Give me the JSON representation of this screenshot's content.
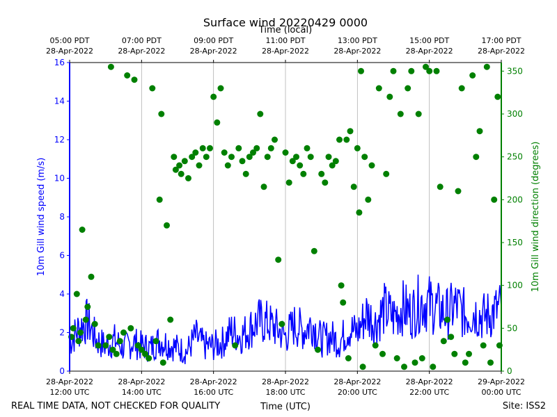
{
  "chart_data": {
    "type": "line+scatter",
    "title": "Surface wind 20220429 0000",
    "top_axis_label": "Time (local)",
    "xlabel": "Time (UTC)",
    "ylabel_left": "10m Gill wind speed (m/s)",
    "ylabel_right": "10m Gill wind direction (degrees)",
    "footer_left": "REAL TIME DATA, NOT CHECKED FOR QUALITY",
    "footer_right": "Site: ISS2",
    "x_range_hours_utc": [
      12,
      24
    ],
    "ylim_left": [
      0,
      16
    ],
    "ylim_right": [
      0,
      360
    ],
    "grid": "vertical",
    "colors": {
      "speed": "#0000ff",
      "direction": "#008000",
      "grid": "#b0b0b0",
      "axis": "#000000"
    },
    "x_ticks_utc": [
      {
        "hour": 12,
        "date": "28-Apr-2022",
        "time": "12:00 UTC"
      },
      {
        "hour": 14,
        "date": "28-Apr-2022",
        "time": "14:00 UTC"
      },
      {
        "hour": 16,
        "date": "28-Apr-2022",
        "time": "16:00 UTC"
      },
      {
        "hour": 18,
        "date": "28-Apr-2022",
        "time": "18:00 UTC"
      },
      {
        "hour": 20,
        "date": "28-Apr-2022",
        "time": "20:00 UTC"
      },
      {
        "hour": 22,
        "date": "28-Apr-2022",
        "time": "22:00 UTC"
      },
      {
        "hour": 24,
        "date": "29-Apr-2022",
        "time": "00:00 UTC"
      }
    ],
    "x_ticks_local": [
      {
        "hour": 12,
        "time": "05:00 PDT",
        "date": "28-Apr-2022"
      },
      {
        "hour": 14,
        "time": "07:00 PDT",
        "date": "28-Apr-2022"
      },
      {
        "hour": 16,
        "time": "09:00 PDT",
        "date": "28-Apr-2022"
      },
      {
        "hour": 18,
        "time": "11:00 PDT",
        "date": "28-Apr-2022"
      },
      {
        "hour": 20,
        "time": "13:00 PDT",
        "date": "28-Apr-2022"
      },
      {
        "hour": 22,
        "time": "15:00 PDT",
        "date": "28-Apr-2022"
      },
      {
        "hour": 24,
        "time": "17:00 PDT",
        "date": "28-Apr-2022"
      }
    ],
    "y_ticks_left": [
      0,
      2,
      4,
      6,
      8,
      10,
      12,
      14,
      16
    ],
    "y_ticks_right": [
      0,
      50,
      100,
      150,
      200,
      250,
      300,
      350
    ],
    "series": [
      {
        "name": "wind_speed",
        "axis": "left",
        "style": "line",
        "x_hours_utc": [
          12.0,
          12.25,
          12.5,
          12.75,
          13.0,
          13.25,
          13.5,
          13.75,
          14.0,
          14.25,
          14.5,
          14.75,
          15.0,
          15.25,
          15.5,
          15.75,
          16.0,
          16.25,
          16.5,
          16.75,
          17.0,
          17.25,
          17.5,
          17.75,
          18.0,
          18.25,
          18.5,
          18.75,
          19.0,
          19.25,
          19.5,
          19.75,
          20.0,
          20.25,
          20.5,
          20.75,
          21.0,
          21.25,
          21.5,
          21.75,
          22.0,
          22.25,
          22.5,
          22.75,
          23.0,
          23.25,
          23.5,
          23.75,
          24.0
        ],
        "values": [
          1.5,
          2.2,
          2.6,
          1.6,
          1.3,
          1.6,
          1.2,
          1.5,
          1.3,
          1.2,
          1.6,
          1.4,
          1.2,
          1.0,
          1.8,
          1.3,
          1.3,
          1.5,
          2.1,
          1.8,
          2.2,
          2.6,
          2.5,
          2.2,
          1.8,
          2.4,
          2.1,
          2.5,
          1.6,
          1.8,
          1.5,
          2.2,
          2.0,
          3.0,
          2.5,
          3.2,
          2.8,
          3.3,
          3.0,
          3.6,
          3.5,
          3.2,
          3.0,
          3.4,
          2.9,
          3.1,
          2.8,
          3.0,
          3.3
        ]
      },
      {
        "name": "wind_direction",
        "axis": "right",
        "style": "scatter",
        "x_hours_utc": [
          12.05,
          12.1,
          12.2,
          12.25,
          12.3,
          12.35,
          12.45,
          12.5,
          12.6,
          12.7,
          12.8,
          13.0,
          13.1,
          13.15,
          13.2,
          13.3,
          13.4,
          13.5,
          13.6,
          13.7,
          13.8,
          13.9,
          14.0,
          14.1,
          14.2,
          14.3,
          14.4,
          14.5,
          14.55,
          14.6,
          14.7,
          14.8,
          14.9,
          14.95,
          15.05,
          15.1,
          15.2,
          15.3,
          15.4,
          15.5,
          15.6,
          15.7,
          15.8,
          15.9,
          16.0,
          16.1,
          16.2,
          16.3,
          16.4,
          16.5,
          16.6,
          16.7,
          16.8,
          16.9,
          17.0,
          17.1,
          17.2,
          17.3,
          17.4,
          17.5,
          17.6,
          17.7,
          17.8,
          17.9,
          18.0,
          18.1,
          18.2,
          18.3,
          18.4,
          18.5,
          18.6,
          18.7,
          18.8,
          18.9,
          19.0,
          19.1,
          19.2,
          19.3,
          19.4,
          19.5,
          19.55,
          19.6,
          19.7,
          19.75,
          19.8,
          19.9,
          20.0,
          20.05,
          20.1,
          20.15,
          20.2,
          20.3,
          20.4,
          20.5,
          20.6,
          20.7,
          20.8,
          20.9,
          21.0,
          21.1,
          21.2,
          21.3,
          21.4,
          21.5,
          21.6,
          21.7,
          21.8,
          21.9,
          22.0,
          22.1,
          22.2,
          22.3,
          22.4,
          22.5,
          22.6,
          22.7,
          22.8,
          22.9,
          23.0,
          23.1,
          23.2,
          23.3,
          23.4,
          23.5,
          23.6,
          23.7,
          23.8,
          23.9,
          23.95
        ],
        "values": [
          40,
          50,
          90,
          35,
          45,
          165,
          60,
          75,
          110,
          55,
          30,
          30,
          40,
          355,
          25,
          20,
          35,
          45,
          345,
          50,
          340,
          30,
          25,
          20,
          15,
          330,
          35,
          200,
          300,
          10,
          170,
          60,
          250,
          235,
          240,
          230,
          245,
          225,
          250,
          255,
          240,
          260,
          250,
          260,
          320,
          290,
          330,
          255,
          240,
          250,
          30,
          260,
          245,
          230,
          250,
          255,
          260,
          300,
          215,
          250,
          260,
          270,
          130,
          55,
          255,
          220,
          245,
          250,
          240,
          230,
          260,
          250,
          140,
          25,
          230,
          220,
          250,
          240,
          245,
          270,
          100,
          80,
          270,
          15,
          280,
          215,
          260,
          185,
          350,
          5,
          250,
          200,
          240,
          30,
          330,
          20,
          230,
          320,
          350,
          15,
          300,
          5,
          330,
          350,
          10,
          300,
          15,
          355,
          350,
          5,
          350,
          215,
          35,
          60,
          40,
          20,
          210,
          330,
          10,
          20,
          345,
          250,
          280,
          30,
          355,
          10,
          200,
          320,
          30
        ],
        "outliers_high": [
          355,
          358,
          350
        ],
        "outliers_low": [
          5,
          2,
          8
        ]
      }
    ]
  }
}
